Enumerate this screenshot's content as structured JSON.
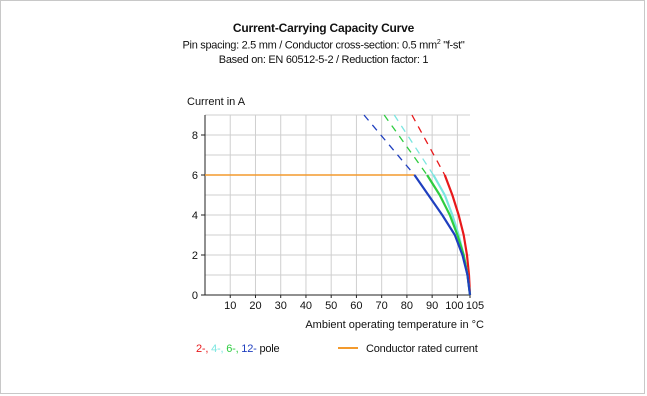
{
  "chart_data": {
    "type": "line",
    "title": "Current-Carrying Capacity Curve",
    "subtitle_1_prefix": "Pin spacing: 2.5 mm / Conductor cross-section: 0.5 mm",
    "subtitle_1_sup": "2",
    "subtitle_1_suffix": " \"f-st\"",
    "subtitle_2": "Based on: EN 60512-5-2 / Reduction factor: 1",
    "ylabel": "Current in A",
    "xlabel": "Ambient operating temperature in °C",
    "xlim": [
      0,
      105
    ],
    "ylim": [
      0,
      9
    ],
    "x_ticks": [
      10,
      20,
      30,
      40,
      50,
      60,
      70,
      80,
      90,
      100,
      105
    ],
    "y_ticks": [
      0,
      2,
      4,
      6,
      8
    ],
    "grid": true,
    "rated_current": {
      "value": 6,
      "color": "#f39a2d",
      "label": "Conductor rated current"
    },
    "series": [
      {
        "name": "2-",
        "color": "#e8191b",
        "dashed": [
          [
            82,
            9
          ],
          [
            95,
            6
          ]
        ],
        "solid": [
          [
            95,
            6
          ],
          [
            98,
            5
          ],
          [
            100.5,
            4
          ],
          [
            102.5,
            3
          ],
          [
            103.8,
            2
          ],
          [
            104.6,
            1
          ],
          [
            105,
            0
          ]
        ]
      },
      {
        "name": "4-",
        "color": "#7be6e0",
        "dashed": [
          [
            75,
            9
          ],
          [
            90.5,
            6
          ]
        ],
        "solid": [
          [
            90.5,
            6
          ],
          [
            95,
            5
          ],
          [
            98,
            4
          ],
          [
            100.5,
            3
          ],
          [
            102.5,
            2
          ],
          [
            104,
            1
          ],
          [
            105,
            0
          ]
        ]
      },
      {
        "name": "6-",
        "color": "#2ecc40",
        "dashed": [
          [
            71,
            9
          ],
          [
            88,
            6
          ]
        ],
        "solid": [
          [
            88,
            6
          ],
          [
            93,
            5
          ],
          [
            97,
            4
          ],
          [
            100,
            3
          ],
          [
            102.5,
            2
          ],
          [
            104,
            1
          ],
          [
            105,
            0
          ]
        ]
      },
      {
        "name": "12-",
        "color": "#1f3fbf",
        "dashed": [
          [
            63,
            9
          ],
          [
            83,
            6
          ]
        ],
        "solid": [
          [
            83,
            6
          ],
          [
            88.5,
            5
          ],
          [
            94,
            4
          ],
          [
            99,
            3
          ],
          [
            102,
            2
          ],
          [
            104,
            1
          ],
          [
            105,
            0
          ]
        ]
      }
    ],
    "legend_suffix": " pole",
    "legend_placement": "bottom"
  }
}
